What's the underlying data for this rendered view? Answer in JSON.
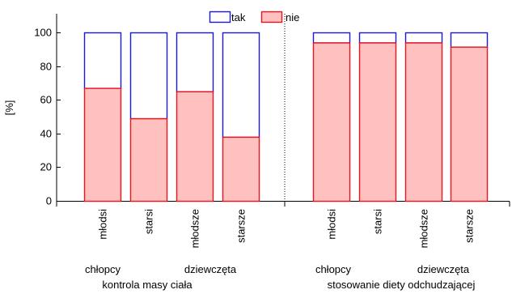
{
  "chart_data": {
    "type": "bar",
    "stacked": true,
    "ylabel": "[%]",
    "ylim": [
      0,
      100
    ],
    "yticks": [
      "0",
      "20",
      "40",
      "60",
      "80",
      "100"
    ],
    "legend": {
      "placement": "top-center",
      "entries": [
        {
          "label": "tak",
          "fill": "#ffffff",
          "stroke": "#1a1ad6"
        },
        {
          "label": "nie",
          "fill": "#ffc0c0",
          "stroke": "#e8141e"
        }
      ]
    },
    "series": [
      {
        "name": "nie",
        "values": [
          67,
          49,
          65,
          38,
          94,
          94,
          94,
          91.5
        ]
      },
      {
        "name": "tak",
        "values": [
          33,
          51,
          35,
          62,
          6,
          6,
          6,
          8.5
        ]
      }
    ],
    "categories": [
      "młodsi",
      "starsi",
      "młodsze",
      "starsze",
      "młodsi",
      "starsi",
      "młodsze",
      "starsze"
    ],
    "groups": [
      {
        "label": "kontrola masy ciała",
        "subgroups": [
          "chłopcy",
          "dziewczęta"
        ]
      },
      {
        "label": "stosowanie diety odchudzającej",
        "subgroups": [
          "chłopcy",
          "dziewczęta"
        ]
      }
    ]
  }
}
